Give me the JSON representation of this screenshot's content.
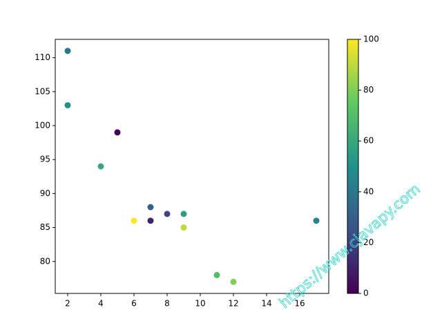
{
  "chart_data": {
    "type": "scatter",
    "x": [
      5,
      7,
      8,
      7,
      2,
      17,
      2,
      9,
      4,
      11,
      12,
      9,
      6
    ],
    "y": [
      99,
      86,
      87,
      88,
      111,
      86,
      103,
      87,
      94,
      78,
      77,
      85,
      86
    ],
    "colors": [
      0,
      10,
      20,
      30,
      40,
      45,
      50,
      55,
      60,
      70,
      80,
      90,
      100
    ],
    "colormap": [
      "#440154",
      "#3b528b",
      "#21918c",
      "#5ec962",
      "#fde725"
    ],
    "xlim": [
      1.25,
      17.75
    ],
    "xticks": [
      2,
      4,
      6,
      8,
      10,
      12,
      14,
      16
    ],
    "ylim": [
      75.3,
      112.7
    ],
    "yticks": [
      80,
      85,
      90,
      95,
      100,
      105,
      110
    ],
    "clim": [
      0,
      100
    ],
    "cticks": [
      0,
      20,
      40,
      60,
      80,
      100
    ],
    "watermark": "https://www.cjavapy.com"
  }
}
